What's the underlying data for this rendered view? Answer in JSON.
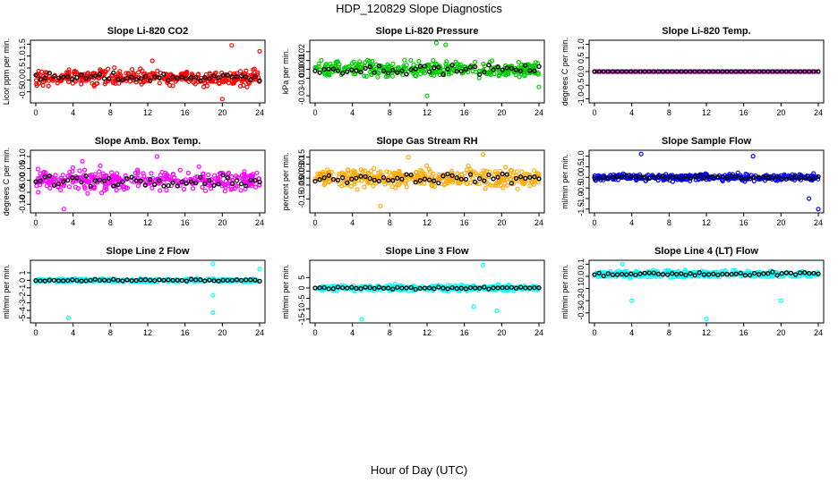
{
  "title": "HDP_120829  Slope Diagnostics",
  "xlabel": "Hour of Day (UTC)",
  "chart_data": [
    {
      "type": "scatter",
      "title": "Slope Li-820 CO2",
      "ylabel": "Licor ppm per min.",
      "color": "#ff0000",
      "xlim": [
        0,
        24
      ],
      "xticks": [
        "0",
        "4",
        "8",
        "12",
        "16",
        "20",
        "24"
      ],
      "ylim": [
        -0.85,
        1.55
      ],
      "yticks": [
        "-0.5",
        "0.0",
        "0.5",
        "1.0",
        "1.5"
      ],
      "ytick_values": [
        -0.5,
        0,
        0.5,
        1,
        1.5
      ],
      "center": 0.1,
      "spread": 0.3,
      "outliers": [
        [
          21,
          1.45
        ],
        [
          20,
          -0.8
        ],
        [
          24,
          1.2
        ],
        [
          12.5,
          0.8
        ]
      ]
    },
    {
      "type": "scatter",
      "title": "Slope Li-820 Pressure",
      "ylabel": "kPa per min.",
      "color": "#00cc00",
      "xlim": [
        0,
        24
      ],
      "xticks": [
        "0",
        "4",
        "8",
        "12",
        "16",
        "20",
        "24"
      ],
      "ylim": [
        -0.035,
        0.03
      ],
      "yticks": [
        "-0.03",
        "-0.01",
        "0.00",
        "0.01",
        "0.02"
      ],
      "ytick_values": [
        -0.03,
        -0.01,
        0,
        0.01,
        0.02
      ],
      "center": 0.0,
      "spread": 0.008,
      "outliers": [
        [
          13,
          0.03
        ],
        [
          12,
          -0.03
        ],
        [
          24,
          -0.02
        ],
        [
          14,
          0.028
        ]
      ]
    },
    {
      "type": "scatter",
      "title": "Slope Li-820 Temp.",
      "ylabel": "degrees C per min.",
      "color": "#cc00cc",
      "xlim": [
        0,
        24
      ],
      "xticks": [
        "0",
        "4",
        "8",
        "12",
        "16",
        "20",
        "24"
      ],
      "ylim": [
        -1.05,
        1.05
      ],
      "yticks": [
        "-1.0",
        "-0.5",
        "0.0",
        "0.5",
        "1.0"
      ],
      "ytick_values": [
        -1,
        -0.5,
        0,
        0.5,
        1
      ],
      "center": 0.0,
      "spread": 0.0,
      "outliers": []
    },
    {
      "type": "scatter",
      "title": "Slope Amb. Box Temp.",
      "ylabel": "degrees C per min.",
      "color": "#ff00ff",
      "xlim": [
        0,
        24
      ],
      "xticks": [
        "0",
        "4",
        "8",
        "12",
        "16",
        "20",
        "24"
      ],
      "ylim": [
        -0.125,
        0.115
      ],
      "yticks": [
        "-0.10",
        "-0.05",
        "0.00",
        "0.05",
        "0.10"
      ],
      "ytick_values": [
        -0.1,
        -0.05,
        0,
        0.05,
        0.1
      ],
      "center": 0.0,
      "spread": 0.04,
      "outliers": [
        [
          3,
          -0.12
        ],
        [
          13,
          0.1
        ],
        [
          5,
          0.08
        ]
      ]
    },
    {
      "type": "scatter",
      "title": "Slope Gas Stream RH",
      "ylabel": "percent per min.",
      "color": "#ffaa00",
      "xlim": [
        0,
        24
      ],
      "xticks": [
        "0",
        "4",
        "8",
        "12",
        "16",
        "20",
        "24"
      ],
      "ylim": [
        -0.23,
        0.18
      ],
      "yticks": [
        "-0.15",
        "-0.05",
        "0.00",
        "0.05",
        "0.10",
        "0.15"
      ],
      "ytick_values": [
        -0.15,
        -0.05,
        0,
        0.05,
        0.1,
        0.15
      ],
      "center": 0.0,
      "spread": 0.06,
      "outliers": [
        [
          7,
          -0.2
        ],
        [
          18,
          0.17
        ],
        [
          10,
          0.15
        ]
      ]
    },
    {
      "type": "scatter",
      "title": "Slope Sample Flow",
      "ylabel": "ml/min per min.",
      "color": "#0000ff",
      "xlim": [
        0,
        24
      ],
      "xticks": [
        "0",
        "4",
        "8",
        "12",
        "16",
        "20",
        "24"
      ],
      "ylim": [
        -1.55,
        1.15
      ],
      "yticks": [
        "-1.5",
        "-1.0",
        "-0.5",
        "0.0",
        "0.5",
        "1.0"
      ],
      "ytick_values": [
        -1.5,
        -1,
        -0.5,
        0,
        0.5,
        1
      ],
      "center": 0.0,
      "spread": 0.15,
      "outliers": [
        [
          24,
          -1.5
        ],
        [
          5,
          1.1
        ],
        [
          17,
          1.0
        ],
        [
          23,
          -1.0
        ]
      ]
    },
    {
      "type": "scatter",
      "title": "Slope Line 2 Flow",
      "ylabel": "ml/min per min.",
      "color": "#00ffff",
      "xlim": [
        0,
        24
      ],
      "xticks": [
        "0",
        "4",
        "8",
        "12",
        "16",
        "20",
        "24"
      ],
      "ylim": [
        -5.3,
        2.3
      ],
      "yticks": [
        "-5",
        "-4",
        "-3",
        "-2",
        "-1",
        "0",
        "1"
      ],
      "ytick_values": [
        -5,
        -4,
        -3,
        -2,
        -1,
        0,
        1
      ],
      "center": 0.0,
      "spread": 0.2,
      "outliers": [
        [
          3.5,
          -5.0
        ],
        [
          19,
          -4.3
        ],
        [
          19,
          2.2
        ],
        [
          24,
          1.5
        ],
        [
          19,
          -2.0
        ]
      ]
    },
    {
      "type": "scatter",
      "title": "Slope Line 3 Flow",
      "ylabel": "ml/min per min.",
      "color": "#00ffff",
      "xlim": [
        0,
        24
      ],
      "xticks": [
        "0",
        "4",
        "8",
        "12",
        "16",
        "20",
        "24"
      ],
      "ylim": [
        -15.5,
        12
      ],
      "yticks": [
        "-15",
        "-10",
        "-5",
        "0",
        "5"
      ],
      "ytick_values": [
        -15,
        -10,
        -5,
        0,
        5
      ],
      "center": 0.0,
      "spread": 1.2,
      "outliers": [
        [
          5,
          -15
        ],
        [
          18,
          11
        ],
        [
          19.5,
          -11
        ],
        [
          17,
          -9
        ]
      ]
    },
    {
      "type": "scatter",
      "title": "Slope Line 4 (LT) Flow",
      "ylabel": "ml/min per min.",
      "color": "#00ffff",
      "xlim": [
        0,
        24
      ],
      "xticks": [
        "0",
        "4",
        "8",
        "12",
        "16",
        "20",
        "24"
      ],
      "ylim": [
        -0.36,
        0.11
      ],
      "yticks": [
        "-0.3",
        "-0.2",
        "-0.1",
        "0.0",
        "0.1"
      ],
      "ytick_values": [
        -0.3,
        -0.2,
        -0.1,
        0,
        0.1
      ],
      "center": 0.02,
      "spread": 0.025,
      "outliers": [
        [
          12,
          -0.35
        ],
        [
          4,
          -0.2
        ],
        [
          20,
          -0.2
        ],
        [
          3,
          0.1
        ]
      ]
    }
  ]
}
